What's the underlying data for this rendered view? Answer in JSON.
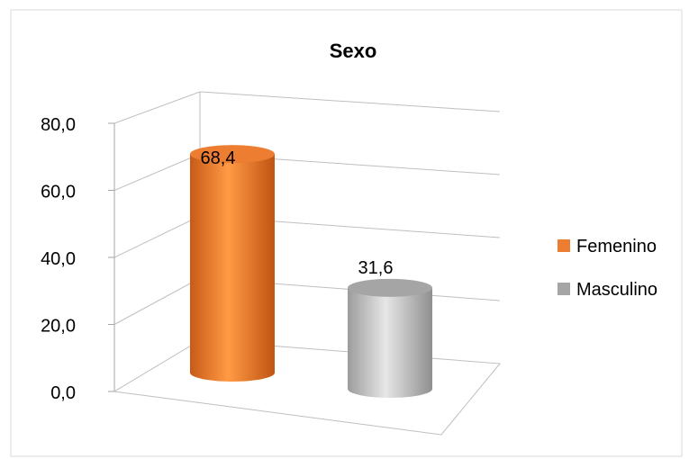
{
  "chart_data": {
    "type": "bar",
    "title": "Sexo",
    "categories": [
      "Femenino",
      "Masculino"
    ],
    "values": [
      68.4,
      31.6
    ],
    "value_labels": [
      "68,4",
      "31,6"
    ],
    "colors": [
      "#ED7D31",
      "#A5A5A5"
    ],
    "ylim": [
      0,
      80
    ],
    "yticks": [
      0,
      20,
      40,
      60,
      80
    ],
    "ytick_labels": [
      "0,0",
      "20,0",
      "40,0",
      "60,0",
      "80,0"
    ],
    "xlabel": "",
    "ylabel": "",
    "grid": true,
    "style": "3d-cylinder",
    "legend": {
      "position": "right",
      "entries": [
        "Femenino",
        "Masculino"
      ]
    }
  }
}
